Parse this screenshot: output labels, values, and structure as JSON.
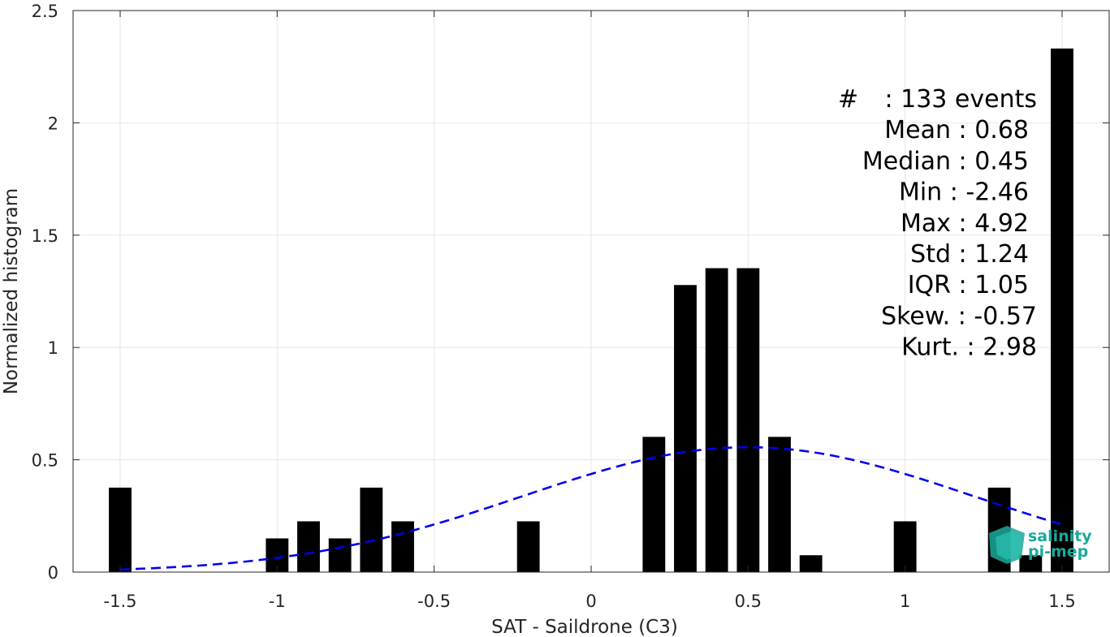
{
  "chart_data": {
    "type": "bar",
    "xlabel": "SAT - Saildrone (C3)",
    "ylabel": "Normalized histogram",
    "xlim": [
      -1.65,
      1.65
    ],
    "ylim": [
      0,
      2.5
    ],
    "xticks": [
      -1.5,
      -1,
      -0.5,
      0,
      0.5,
      1,
      1.5
    ],
    "xtick_labels": [
      "-1.5",
      "-1",
      "-0.5",
      "0",
      "0.5",
      "1",
      "1.5"
    ],
    "yticks": [
      0,
      0.5,
      1,
      1.5,
      2,
      2.5
    ],
    "ytick_labels": [
      "0",
      "0.5",
      "1",
      "1.5",
      "2",
      "2.5"
    ],
    "grid": true,
    "bar_color": "#000000",
    "bin_width": 0.1,
    "bars": [
      {
        "x": -1.5,
        "y": 0.376
      },
      {
        "x": -1.0,
        "y": 0.15
      },
      {
        "x": -0.9,
        "y": 0.226
      },
      {
        "x": -0.8,
        "y": 0.15
      },
      {
        "x": -0.7,
        "y": 0.376
      },
      {
        "x": -0.6,
        "y": 0.226
      },
      {
        "x": -0.2,
        "y": 0.226
      },
      {
        "x": 0.2,
        "y": 0.602
      },
      {
        "x": 0.3,
        "y": 1.278
      },
      {
        "x": 0.4,
        "y": 1.353
      },
      {
        "x": 0.5,
        "y": 1.353
      },
      {
        "x": 0.6,
        "y": 0.602
      },
      {
        "x": 0.7,
        "y": 0.075
      },
      {
        "x": 1.0,
        "y": 0.226
      },
      {
        "x": 1.3,
        "y": 0.376
      },
      {
        "x": 1.4,
        "y": 0.075
      },
      {
        "x": 1.5,
        "y": 2.331
      }
    ],
    "fit_curve": {
      "style": "dashed",
      "color": "#0000ee",
      "mean": 0.5,
      "std": 0.72,
      "peak": 0.556,
      "x_range": [
        -1.5,
        1.5
      ]
    },
    "stats": [
      {
        "label": "#",
        "value": ": 133 events"
      },
      {
        "label": "Mean",
        "value": ": 0.68"
      },
      {
        "label": "Median",
        "value": ": 0.45"
      },
      {
        "label": "Min",
        "value": ": -2.46"
      },
      {
        "label": "Max",
        "value": ": 4.92"
      },
      {
        "label": "Std",
        "value": ": 1.24"
      },
      {
        "label": "IQR",
        "value": ": 1.05"
      },
      {
        "label": "Skew.",
        "value": ": -0.57"
      },
      {
        "label": "Kurt.",
        "value": ": 2.98"
      }
    ]
  },
  "logo": {
    "line1": "salinity",
    "line2": "pi-mep",
    "color": "#1aa99a"
  }
}
